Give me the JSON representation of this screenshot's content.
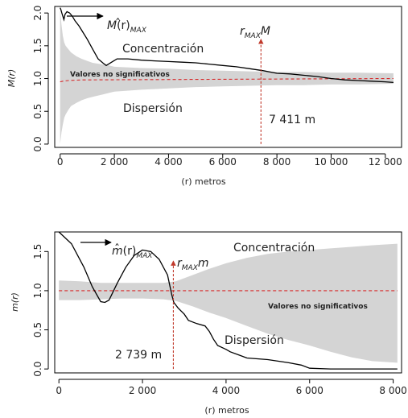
{
  "chart_data": [
    {
      "type": "line",
      "ylabel": "M(r)",
      "xlabel": "(r) metros",
      "xlim": [
        -200,
        12600
      ],
      "ylim": [
        -0.05,
        2.1
      ],
      "xticks": [
        0,
        2000,
        4000,
        6000,
        8000,
        10000,
        12000
      ],
      "xtick_labels": [
        "0",
        "2 000",
        "4 000",
        "6 000",
        "8 000",
        "10 000",
        "12 000"
      ],
      "yticks": [
        0.0,
        0.5,
        1.0,
        1.5,
        2.0
      ],
      "ytick_labels": [
        "0.0",
        "0.5",
        "1.0",
        "1.5",
        "2.0"
      ],
      "envelope": {
        "x": [
          0,
          50,
          100,
          150,
          200,
          300,
          400,
          600,
          800,
          1000,
          1200,
          1500,
          1800,
          2000,
          3000,
          4000,
          5000,
          6000,
          7000,
          8000,
          9000,
          10000,
          11000,
          12300
        ],
        "upper": [
          2.05,
          1.82,
          1.65,
          1.55,
          1.5,
          1.45,
          1.4,
          1.34,
          1.3,
          1.27,
          1.24,
          1.22,
          1.2,
          1.18,
          1.16,
          1.15,
          1.13,
          1.12,
          1.11,
          1.1,
          1.1,
          1.09,
          1.09,
          1.08
        ],
        "lower": [
          0.0,
          0.18,
          0.3,
          0.4,
          0.45,
          0.52,
          0.58,
          0.63,
          0.67,
          0.7,
          0.72,
          0.75,
          0.78,
          0.8,
          0.83,
          0.85,
          0.87,
          0.88,
          0.89,
          0.9,
          0.9,
          0.91,
          0.91,
          0.92
        ]
      },
      "series": [
        {
          "x": [
            0,
            30,
            60,
            100,
            140,
            180,
            250,
            350,
            450,
            550,
            700,
            850,
            1000,
            1200,
            1400,
            1600,
            1700,
            1900,
            2100,
            2500,
            3000,
            3500,
            4000,
            4500,
            5000,
            5500,
            6000,
            6500,
            7000,
            7500,
            8000,
            8500,
            9000,
            9500,
            10000,
            10500,
            11000,
            11500,
            12000,
            12300
          ],
          "y": [
            2.08,
            2.05,
            2.0,
            1.95,
            1.9,
            1.98,
            2.02,
            2.0,
            1.95,
            1.88,
            1.8,
            1.7,
            1.6,
            1.45,
            1.3,
            1.23,
            1.2,
            1.25,
            1.3,
            1.3,
            1.28,
            1.27,
            1.26,
            1.25,
            1.24,
            1.22,
            1.2,
            1.18,
            1.15,
            1.12,
            1.08,
            1.07,
            1.05,
            1.03,
            1.0,
            0.98,
            0.97,
            0.96,
            0.95,
            0.94
          ]
        }
      ],
      "reference_line": [
        {
          "x": 0,
          "y": 0.95
        },
        {
          "x": 100,
          "y": 0.96
        },
        {
          "x": 300,
          "y": 0.97
        },
        {
          "x": 800,
          "y": 0.98
        },
        {
          "x": 12300,
          "y": 1.0
        }
      ],
      "marker": {
        "x": 7411,
        "y_from": 0.0,
        "y_to": 1.6
      },
      "labels": {
        "max_prefix": "M",
        "max_suffix": "(r)",
        "max_sub": "MAX",
        "r_label": "r",
        "r_sub": "MAX",
        "r_suffix": "M",
        "concentration": "Concentración",
        "dispersion": "Dispersión",
        "nonsig": "Valores no significativos",
        "distance": "7 411 m"
      }
    },
    {
      "type": "line",
      "ylabel": "m(r)",
      "xlabel": "(r) metros",
      "xlim": [
        -100,
        8200
      ],
      "ylim": [
        -0.05,
        1.75
      ],
      "xticks": [
        0,
        2000,
        4000,
        6000,
        8000
      ],
      "xtick_labels": [
        "0",
        "2 000",
        "4 000",
        "6 000",
        "8 000"
      ],
      "yticks": [
        0.0,
        0.5,
        1.0,
        1.5
      ],
      "ytick_labels": [
        "0.0",
        "0.5",
        "1.0",
        "1.5"
      ],
      "envelope": {
        "x": [
          0,
          500,
          1000,
          1500,
          2000,
          2500,
          2800,
          3200,
          3600,
          4000,
          4500,
          5000,
          5500,
          6000,
          6500,
          7000,
          7500,
          8100
        ],
        "upper": [
          1.13,
          1.12,
          1.1,
          1.1,
          1.1,
          1.1,
          1.12,
          1.2,
          1.28,
          1.35,
          1.42,
          1.47,
          1.5,
          1.52,
          1.54,
          1.56,
          1.58,
          1.6
        ],
        "lower": [
          0.88,
          0.88,
          0.89,
          0.9,
          0.9,
          0.89,
          0.87,
          0.8,
          0.72,
          0.65,
          0.55,
          0.45,
          0.37,
          0.3,
          0.22,
          0.15,
          0.1,
          0.08
        ]
      },
      "series": [
        {
          "x": [
            0,
            300,
            600,
            800,
            1000,
            1100,
            1200,
            1400,
            1600,
            1800,
            2000,
            2200,
            2400,
            2600,
            2700,
            2750,
            2850,
            3000,
            3100,
            3300,
            3500,
            3600,
            3700,
            3800,
            4000,
            4100,
            4300,
            4500,
            5000,
            5500,
            5800,
            6000,
            6500,
            7000,
            7500,
            8100
          ],
          "y": [
            1.75,
            1.6,
            1.3,
            1.05,
            0.86,
            0.85,
            0.88,
            1.1,
            1.3,
            1.45,
            1.52,
            1.5,
            1.4,
            1.2,
            0.95,
            0.85,
            0.78,
            0.7,
            0.62,
            0.58,
            0.55,
            0.48,
            0.38,
            0.3,
            0.25,
            0.22,
            0.18,
            0.14,
            0.12,
            0.08,
            0.05,
            0.01,
            0.0,
            0.0,
            0.0,
            0.0
          ]
        }
      ],
      "reference_line": [
        {
          "x": 0,
          "y": 1.0
        },
        {
          "x": 8100,
          "y": 1.0
        }
      ],
      "marker": {
        "x": 2739,
        "y_from": 0.0,
        "y_to": 1.38
      },
      "labels": {
        "max_prefix": "m",
        "max_suffix": "(r)",
        "max_sub": "MAX",
        "r_label": "r",
        "r_sub": "MAX",
        "r_suffix": "m",
        "concentration": "Concentración",
        "dispersion": "Dispersión",
        "nonsig": "Valores no significativos",
        "distance": "2 739 m"
      }
    }
  ]
}
